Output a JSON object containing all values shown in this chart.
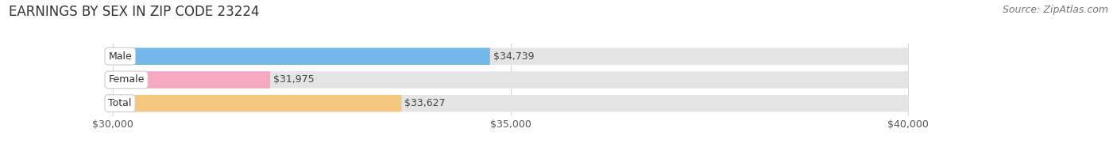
{
  "title": "EARNINGS BY SEX IN ZIP CODE 23224",
  "source": "Source: ZipAtlas.com",
  "categories": [
    "Male",
    "Female",
    "Total"
  ],
  "values": [
    34739,
    31975,
    33627
  ],
  "bar_colors": [
    "#72b8e8",
    "#f5a8bf",
    "#f5c882"
  ],
  "track_color": "#e4e4e4",
  "x_min": 30000,
  "x_max": 40000,
  "x_ticks": [
    30000,
    35000,
    40000
  ],
  "x_tick_labels": [
    "$30,000",
    "$35,000",
    "$40,000"
  ],
  "value_labels": [
    "$34,739",
    "$31,975",
    "$33,627"
  ],
  "background_color": "#ffffff",
  "title_fontsize": 12,
  "source_fontsize": 9,
  "bar_height": 0.72,
  "figsize": [
    14.06,
    1.96
  ]
}
